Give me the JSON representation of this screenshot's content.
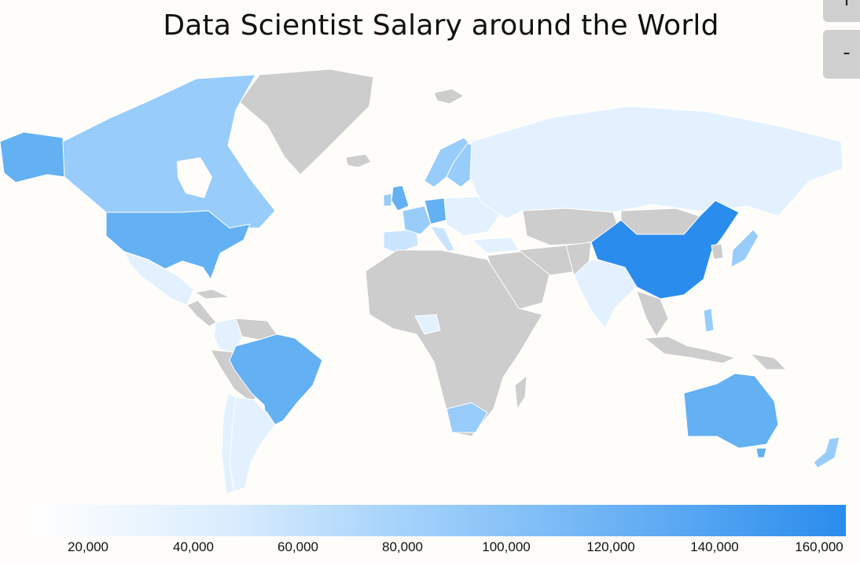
{
  "title": "Data Scientist Salary around the World",
  "zoom": {
    "in_label": "+",
    "out_label": "-"
  },
  "legend": {
    "ticks": [
      "20,000",
      "40,000",
      "60,000",
      "80,000",
      "100,000",
      "120,000",
      "140,000",
      "160,000"
    ],
    "colors": [
      "#ffffff",
      "#d9ecfd",
      "#a6d3fb",
      "#6fb4f5",
      "#2a8cec"
    ]
  },
  "colors": {
    "no_data": "#cdcdcd",
    "tier1": "#e3f1fe",
    "tier2": "#cae4fd",
    "tier3": "#98ccfa",
    "tier4": "#63b0f3",
    "tier5": "#2a8cec"
  }
}
